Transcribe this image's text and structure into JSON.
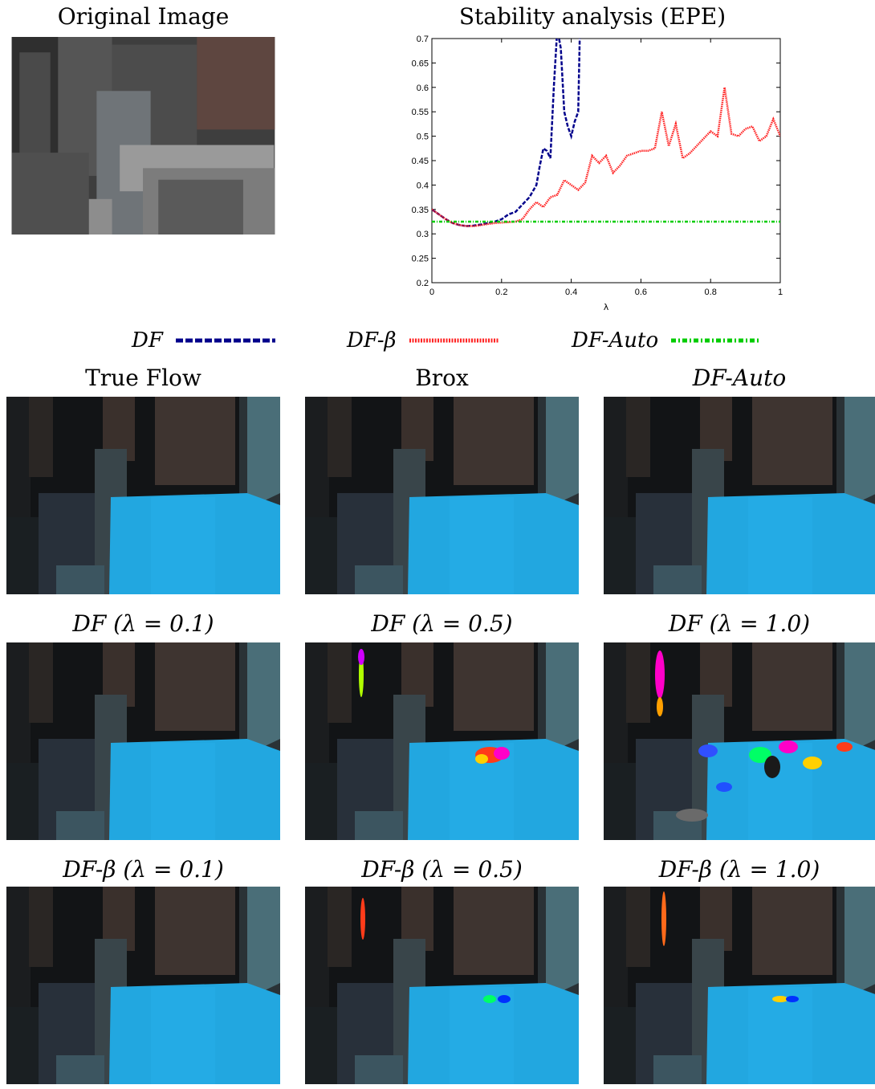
{
  "captions": {
    "original": "Original Image",
    "chart_title": "Stability analysis (EPE)",
    "true_flow": "True Flow",
    "brox": "Brox",
    "df_auto": "DF-Auto",
    "df_01": "DF (λ = 0.1)",
    "df_05": "DF (λ = 0.5)",
    "df_10": "DF (λ = 1.0)",
    "dfb_01": "DF-β (λ = 0.1)",
    "dfb_05": "DF-β (λ = 0.5)",
    "dfb_10": "DF-β (λ = 1.0)"
  },
  "legend": [
    {
      "label": "DF",
      "color": "#00008b",
      "dash": "9,3"
    },
    {
      "label": "DF-β",
      "color": "#ff2222",
      "dash": "2,1.5"
    },
    {
      "label": "DF-Auto",
      "color": "#00cc00",
      "dash": "6,3,2,3"
    }
  ],
  "chart_data": {
    "type": "line",
    "title": "Stability analysis (EPE)",
    "xlabel": "λ",
    "ylabel": "",
    "xlim": [
      0,
      1
    ],
    "ylim": [
      0.2,
      0.7
    ],
    "xticks": [
      "0",
      "0.2",
      "0.4",
      "0.6",
      "0.8",
      "1"
    ],
    "yticks": [
      "0.2",
      "0.25",
      "0.3",
      "0.35",
      "0.4",
      "0.45",
      "0.5",
      "0.55",
      "0.6",
      "0.65",
      "0.7"
    ],
    "series": [
      {
        "name": "DF",
        "color": "#00008b",
        "dash": "5,2",
        "x": [
          0,
          0.02,
          0.04,
          0.06,
          0.08,
          0.1,
          0.12,
          0.14,
          0.16,
          0.18,
          0.2,
          0.22,
          0.24,
          0.26,
          0.28,
          0.3,
          0.31,
          0.32,
          0.33,
          0.34,
          0.35,
          0.36,
          0.37,
          0.38,
          0.39,
          0.4,
          0.41,
          0.42,
          0.425
        ],
        "y": [
          0.35,
          0.34,
          0.33,
          0.322,
          0.318,
          0.316,
          0.317,
          0.319,
          0.322,
          0.325,
          0.33,
          0.34,
          0.345,
          0.36,
          0.375,
          0.4,
          0.44,
          0.475,
          0.47,
          0.455,
          0.6,
          0.72,
          0.68,
          0.55,
          0.52,
          0.5,
          0.53,
          0.55,
          0.72
        ]
      },
      {
        "name": "DF-β",
        "color": "#ff2222",
        "dash": "1.5,1",
        "x": [
          0,
          0.02,
          0.04,
          0.06,
          0.08,
          0.1,
          0.12,
          0.14,
          0.16,
          0.18,
          0.2,
          0.22,
          0.24,
          0.26,
          0.28,
          0.3,
          0.32,
          0.34,
          0.36,
          0.38,
          0.4,
          0.42,
          0.44,
          0.46,
          0.48,
          0.5,
          0.52,
          0.54,
          0.56,
          0.58,
          0.6,
          0.62,
          0.64,
          0.66,
          0.68,
          0.7,
          0.72,
          0.74,
          0.76,
          0.78,
          0.8,
          0.82,
          0.84,
          0.86,
          0.88,
          0.9,
          0.92,
          0.94,
          0.96,
          0.98,
          1.0
        ],
        "y": [
          0.35,
          0.34,
          0.33,
          0.322,
          0.318,
          0.316,
          0.316,
          0.318,
          0.32,
          0.322,
          0.323,
          0.324,
          0.325,
          0.33,
          0.35,
          0.365,
          0.355,
          0.375,
          0.38,
          0.41,
          0.4,
          0.39,
          0.405,
          0.46,
          0.445,
          0.46,
          0.425,
          0.44,
          0.46,
          0.465,
          0.47,
          0.47,
          0.475,
          0.55,
          0.48,
          0.525,
          0.455,
          0.465,
          0.48,
          0.495,
          0.51,
          0.5,
          0.6,
          0.505,
          0.5,
          0.515,
          0.52,
          0.49,
          0.5,
          0.535,
          0.5
        ]
      },
      {
        "name": "DF-Auto",
        "color": "#00cc00",
        "dash": "4,2,1,2",
        "x": [
          0,
          1
        ],
        "y": [
          0.325,
          0.325
        ]
      }
    ],
    "grid": false
  }
}
